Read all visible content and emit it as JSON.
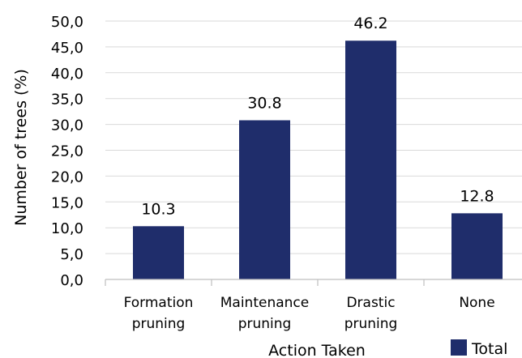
{
  "chart_data": {
    "type": "bar",
    "categories": [
      [
        "Formation",
        "pruning"
      ],
      [
        "Maintenance",
        "pruning"
      ],
      [
        "Drastic",
        "pruning"
      ],
      [
        "None"
      ]
    ],
    "series": [
      {
        "name": "Total",
        "values": [
          10.3,
          30.8,
          46.2,
          12.8
        ],
        "labels": [
          "10.3",
          "30.8",
          "46.2",
          "12.8"
        ],
        "color": "#1f2d6b"
      }
    ],
    "xlabel": "Action Taken",
    "ylabel": "Number of trees (%)",
    "ylim": [
      0,
      50
    ],
    "yticks": [
      "0,0",
      "5,0",
      "10,0",
      "15,0",
      "20,0",
      "25,0",
      "30,0",
      "35,0",
      "40,0",
      "45,0",
      "50,0"
    ],
    "grid": true,
    "legend": {
      "position": "bottom-right",
      "label": "Total"
    }
  }
}
